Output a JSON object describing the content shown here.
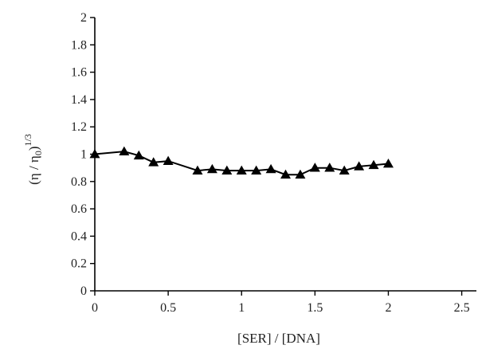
{
  "chart_data": {
    "type": "line",
    "xlabel": "[SER] / [DNA]",
    "ylabel_base": "(η / η",
    "ylabel_sub": "0",
    "ylabel_close": ")",
    "ylabel_sup": "1/3",
    "xlim": [
      0,
      2.6
    ],
    "ylim": [
      0,
      2
    ],
    "x_ticks": [
      0,
      0.5,
      1,
      1.5,
      2,
      2.5
    ],
    "x_tick_labels": [
      "0",
      "0.5",
      "1",
      "1.5",
      "2",
      "2.5"
    ],
    "y_ticks": [
      0,
      0.2,
      0.4,
      0.6,
      0.8,
      1,
      1.2,
      1.4,
      1.6,
      1.8,
      2
    ],
    "y_tick_labels": [
      "0",
      "0.2",
      "0.4",
      "0.6",
      "0.8",
      "1",
      "1.2",
      "1.4",
      "1.6",
      "1.8",
      "2"
    ],
    "grid": false,
    "marker": "triangle",
    "series": [
      {
        "x": [
          0,
          0.2,
          0.3,
          0.4,
          0.5,
          0.7,
          0.8,
          0.9,
          1.0,
          1.1,
          1.2,
          1.3,
          1.4,
          1.5,
          1.6,
          1.7,
          1.8,
          1.9,
          2.0
        ],
        "y": [
          1.0,
          1.02,
          0.99,
          0.94,
          0.95,
          0.88,
          0.89,
          0.88,
          0.88,
          0.88,
          0.89,
          0.85,
          0.85,
          0.9,
          0.9,
          0.88,
          0.91,
          0.92,
          0.93
        ]
      }
    ]
  }
}
